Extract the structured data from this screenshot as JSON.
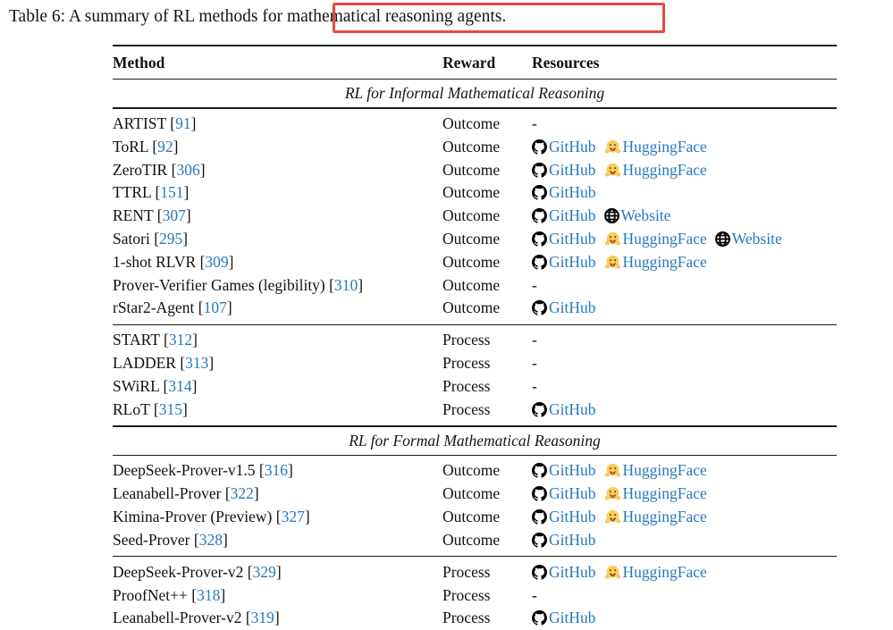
{
  "page": {
    "caption": "Table 6: A summary of RL methods for mathematical reasoning agents."
  },
  "colors": {
    "link_blue": "#2878BE",
    "annotation_red": "#E64A3C",
    "rule_black": "#1A1A1A",
    "huggingface_yellow": "#FDCB58"
  },
  "table": {
    "columns": [
      "Method",
      "Reward",
      "Resources"
    ],
    "empty_marker": "-",
    "sections": [
      {
        "title": "RL for Informal Mathematical Reasoning",
        "groups": [
          {
            "rows": [
              {
                "method": "ARTIST",
                "cite": "91",
                "reward": "Outcome",
                "resources": []
              },
              {
                "method": "ToRL",
                "cite": "92",
                "reward": "Outcome",
                "resources": [
                  {
                    "icon": "github-icon",
                    "label": "GitHub"
                  },
                  {
                    "icon": "huggingface-icon",
                    "label": "HuggingFace"
                  }
                ]
              },
              {
                "method": "ZeroTIR",
                "cite": "306",
                "reward": "Outcome",
                "resources": [
                  {
                    "icon": "github-icon",
                    "label": "GitHub"
                  },
                  {
                    "icon": "huggingface-icon",
                    "label": "HuggingFace"
                  }
                ]
              },
              {
                "method": "TTRL",
                "cite": "151",
                "reward": "Outcome",
                "resources": [
                  {
                    "icon": "github-icon",
                    "label": "GitHub"
                  }
                ]
              },
              {
                "method": "RENT",
                "cite": "307",
                "reward": "Outcome",
                "resources": [
                  {
                    "icon": "github-icon",
                    "label": "GitHub"
                  },
                  {
                    "icon": "globe-icon",
                    "label": "Website"
                  }
                ]
              },
              {
                "method": "Satori",
                "cite": "295",
                "reward": "Outcome",
                "resources": [
                  {
                    "icon": "github-icon",
                    "label": "GitHub"
                  },
                  {
                    "icon": "huggingface-icon",
                    "label": "HuggingFace"
                  },
                  {
                    "icon": "globe-icon",
                    "label": "Website"
                  }
                ]
              },
              {
                "method": "1-shot RLVR",
                "cite": "309",
                "reward": "Outcome",
                "resources": [
                  {
                    "icon": "github-icon",
                    "label": "GitHub"
                  },
                  {
                    "icon": "huggingface-icon",
                    "label": "HuggingFace"
                  }
                ]
              },
              {
                "method": "Prover-Verifier Games (legibility)",
                "cite": "310",
                "reward": "Outcome",
                "resources": []
              },
              {
                "method": "rStar2-Agent",
                "cite": "107",
                "reward": "Outcome",
                "resources": [
                  {
                    "icon": "github-icon",
                    "label": "GitHub"
                  }
                ]
              }
            ]
          },
          {
            "rows": [
              {
                "method": "START",
                "cite": "312",
                "reward": "Process",
                "resources": []
              },
              {
                "method": "LADDER",
                "cite": "313",
                "reward": "Process",
                "resources": []
              },
              {
                "method": "SWiRL",
                "cite": "314",
                "reward": "Process",
                "resources": []
              },
              {
                "method": "RLoT",
                "cite": "315",
                "reward": "Process",
                "resources": [
                  {
                    "icon": "github-icon",
                    "label": "GitHub"
                  }
                ]
              }
            ]
          }
        ]
      },
      {
        "title": "RL for Formal Mathematical Reasoning",
        "groups": [
          {
            "rows": [
              {
                "method": "DeepSeek-Prover-v1.5",
                "cite": "316",
                "reward": "Outcome",
                "resources": [
                  {
                    "icon": "github-icon",
                    "label": "GitHub"
                  },
                  {
                    "icon": "huggingface-icon",
                    "label": "HuggingFace"
                  }
                ]
              },
              {
                "method": "Leanabell-Prover",
                "cite": "322",
                "reward": "Outcome",
                "resources": [
                  {
                    "icon": "github-icon",
                    "label": "GitHub"
                  },
                  {
                    "icon": "huggingface-icon",
                    "label": "HuggingFace"
                  }
                ]
              },
              {
                "method": "Kimina-Prover (Preview)",
                "cite": "327",
                "reward": "Outcome",
                "resources": [
                  {
                    "icon": "github-icon",
                    "label": "GitHub"
                  },
                  {
                    "icon": "huggingface-icon",
                    "label": "HuggingFace"
                  }
                ]
              },
              {
                "method": "Seed-Prover",
                "cite": "328",
                "reward": "Outcome",
                "resources": [
                  {
                    "icon": "github-icon",
                    "label": "GitHub"
                  }
                ]
              }
            ]
          },
          {
            "rows": [
              {
                "method": "DeepSeek-Prover-v2",
                "cite": "329",
                "reward": "Process",
                "resources": [
                  {
                    "icon": "github-icon",
                    "label": "GitHub"
                  },
                  {
                    "icon": "huggingface-icon",
                    "label": "HuggingFace"
                  }
                ]
              },
              {
                "method": "ProofNet++",
                "cite": "318",
                "reward": "Process",
                "resources": []
              },
              {
                "method": "Leanabell-Prover-v2",
                "cite": "319",
                "reward": "Process",
                "resources": [
                  {
                    "icon": "github-icon",
                    "label": "GitHub"
                  }
                ]
              }
            ]
          }
        ]
      }
    ]
  }
}
